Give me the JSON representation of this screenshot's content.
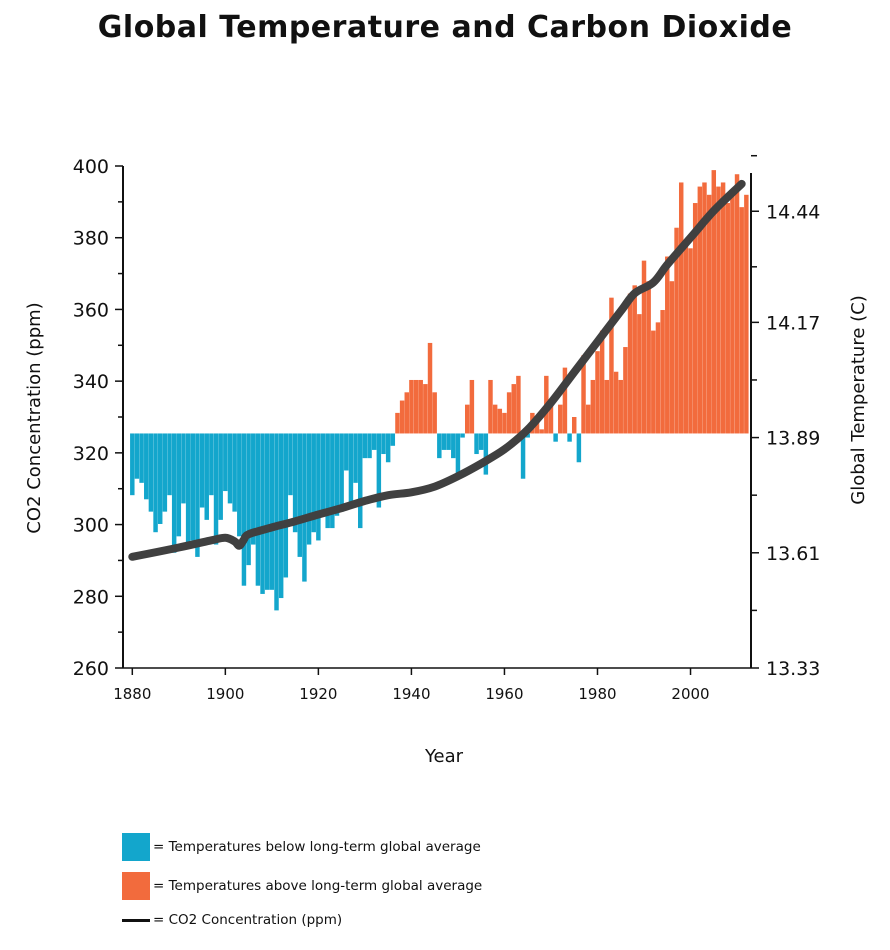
{
  "chart_data": {
    "type": "bar",
    "title": "Global Temperature and Carbon Dioxide",
    "xlabel": "Year",
    "ylabel_left": "CO2 Concentration (ppm)",
    "ylabel_right": "Global Temperature (C)",
    "xlim": [
      1878,
      2013
    ],
    "x_ticks": [
      1880,
      1900,
      1920,
      1940,
      1960,
      1980,
      2000
    ],
    "ylim_left": [
      260,
      400
    ],
    "y_ticks_left": [
      400,
      380,
      360,
      340,
      320,
      300,
      280,
      260
    ],
    "ylim_right": [
      13.33,
      14.55
    ],
    "y_ticks_right": [
      "14.44",
      "14.17",
      "13.89",
      "13.61",
      "13.33"
    ],
    "baseline_temperature": 13.9,
    "colors": {
      "below": "#13A6CC",
      "above": "#F26B3D",
      "co2_line": "#404040"
    },
    "temperature_series": {
      "name": "Global Temperature",
      "years": [
        1880,
        1881,
        1882,
        1883,
        1884,
        1885,
        1886,
        1887,
        1888,
        1889,
        1890,
        1891,
        1892,
        1893,
        1894,
        1895,
        1896,
        1897,
        1898,
        1899,
        1900,
        1901,
        1902,
        1903,
        1904,
        1905,
        1906,
        1907,
        1908,
        1909,
        1910,
        1911,
        1912,
        1913,
        1914,
        1915,
        1916,
        1917,
        1918,
        1919,
        1920,
        1921,
        1922,
        1923,
        1924,
        1925,
        1926,
        1927,
        1928,
        1929,
        1930,
        1931,
        1932,
        1933,
        1934,
        1935,
        1936,
        1937,
        1938,
        1939,
        1940,
        1941,
        1942,
        1943,
        1944,
        1945,
        1946,
        1947,
        1948,
        1949,
        1950,
        1951,
        1952,
        1953,
        1954,
        1955,
        1956,
        1957,
        1958,
        1959,
        1960,
        1961,
        1962,
        1963,
        1964,
        1965,
        1966,
        1967,
        1968,
        1969,
        1970,
        1971,
        1972,
        1973,
        1974,
        1975,
        1976,
        1977,
        1978,
        1979,
        1980,
        1981,
        1982,
        1983,
        1984,
        1985,
        1986,
        1987,
        1988,
        1989,
        1990,
        1991,
        1992,
        1993,
        1994,
        1995,
        1996,
        1997,
        1998,
        1999,
        2000,
        2001,
        2002,
        2003,
        2004,
        2005,
        2006,
        2007,
        2008,
        2009,
        2010,
        2011,
        2012
      ],
      "values": [
        13.75,
        13.79,
        13.78,
        13.74,
        13.71,
        13.66,
        13.68,
        13.71,
        13.75,
        13.61,
        13.65,
        13.73,
        13.63,
        13.64,
        13.6,
        13.72,
        13.69,
        13.75,
        13.63,
        13.69,
        13.76,
        13.73,
        13.71,
        13.65,
        13.53,
        13.58,
        13.63,
        13.53,
        13.51,
        13.52,
        13.52,
        13.47,
        13.5,
        13.55,
        13.75,
        13.66,
        13.6,
        13.54,
        13.63,
        13.66,
        13.64,
        13.71,
        13.67,
        13.67,
        13.7,
        13.71,
        13.81,
        13.72,
        13.78,
        13.67,
        13.84,
        13.84,
        13.86,
        13.72,
        13.85,
        13.83,
        13.87,
        13.95,
        13.98,
        14.0,
        14.03,
        14.03,
        14.03,
        14.02,
        14.12,
        14.0,
        13.84,
        13.86,
        13.86,
        13.84,
        13.8,
        13.89,
        13.97,
        14.03,
        13.85,
        13.86,
        13.8,
        14.03,
        13.97,
        13.96,
        13.95,
        14.0,
        14.02,
        14.04,
        13.79,
        13.89,
        13.95,
        13.94,
        13.91,
        14.04,
        13.97,
        13.88,
        13.97,
        14.06,
        13.88,
        13.94,
        13.83,
        14.09,
        13.97,
        14.03,
        14.1,
        14.15,
        14.03,
        14.23,
        14.05,
        14.03,
        14.11,
        14.24,
        14.26,
        14.19,
        14.32,
        14.27,
        14.15,
        14.17,
        14.2,
        14.33,
        14.27,
        14.4,
        14.51,
        14.36,
        14.35,
        14.46,
        14.5,
        14.51,
        14.48,
        14.54,
        14.5,
        14.51,
        14.46,
        14.49,
        14.53,
        14.45,
        14.48
      ]
    },
    "co2_series": {
      "name": "CO2 Concentration (ppm)",
      "points": [
        [
          1880,
          291
        ],
        [
          1890,
          293.6
        ],
        [
          1897,
          295.6
        ],
        [
          1900,
          296.3
        ],
        [
          1902,
          295.3
        ],
        [
          1903,
          294.1
        ],
        [
          1904,
          295.8
        ],
        [
          1905,
          297.3
        ],
        [
          1910,
          299.2
        ],
        [
          1915,
          300.9
        ],
        [
          1920,
          302.8
        ],
        [
          1925,
          304.6
        ],
        [
          1930,
          306.6
        ],
        [
          1935,
          308.2
        ],
        [
          1940,
          309.0
        ],
        [
          1945,
          310.6
        ],
        [
          1950,
          313.5
        ],
        [
          1955,
          317.0
        ],
        [
          1960,
          321.0
        ],
        [
          1965,
          326.5
        ],
        [
          1970,
          334.0
        ],
        [
          1975,
          342.5
        ],
        [
          1980,
          351.0
        ],
        [
          1985,
          359.5
        ],
        [
          1988,
          364.5
        ],
        [
          1992,
          367.5
        ],
        [
          1995,
          372.5
        ],
        [
          2000,
          380.0
        ],
        [
          2005,
          387.5
        ],
        [
          2011,
          395.0
        ]
      ]
    },
    "legend": [
      {
        "label": "= Temperatures below long-term global average",
        "color": "#13A6CC"
      },
      {
        "label": "= Temperatures above long-term global average",
        "color": "#F26B3D"
      },
      {
        "label": "= CO2 Concentration (ppm)",
        "color": "#111111"
      }
    ]
  }
}
